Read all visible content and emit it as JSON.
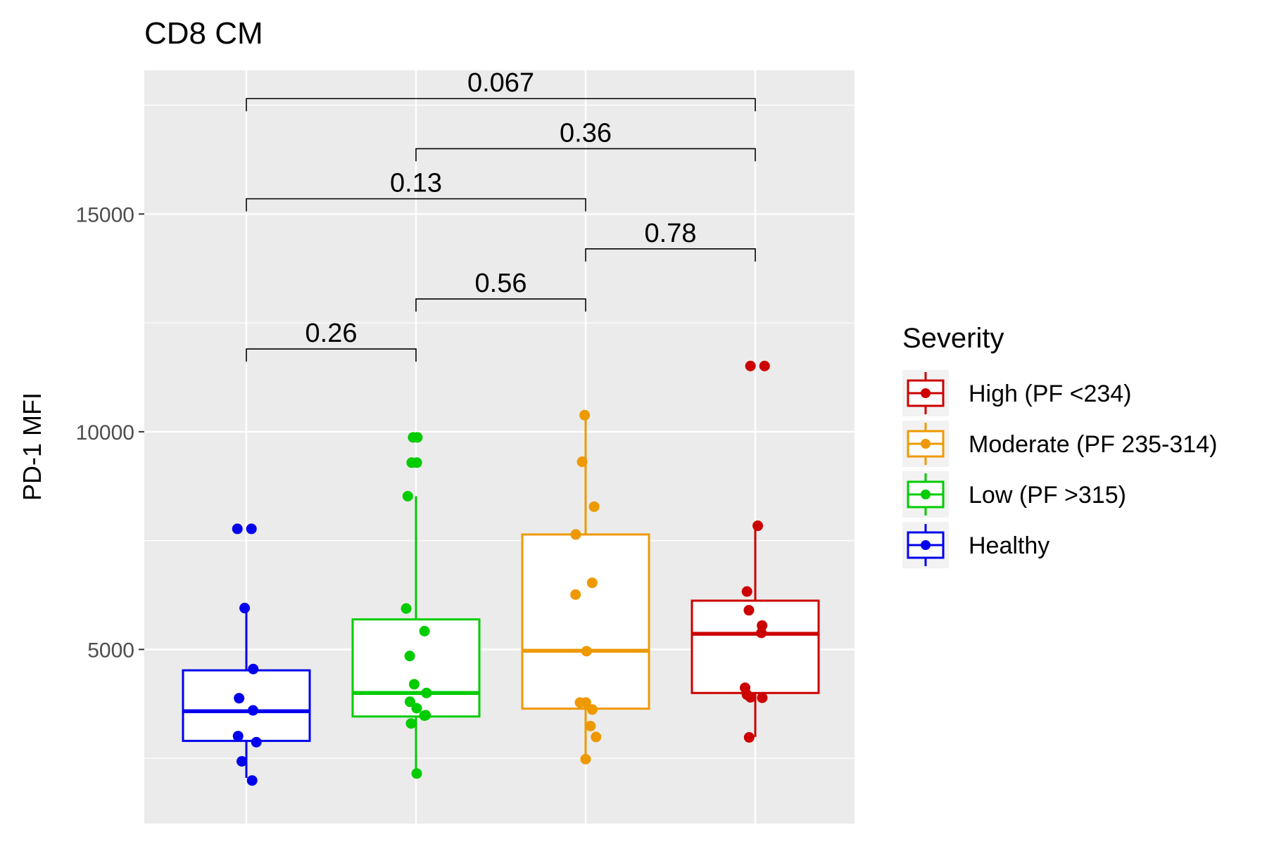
{
  "chart_data": {
    "type": "box",
    "title": "CD8 CM",
    "xlabel": "",
    "ylabel": "PD-1 MFI",
    "ylim": [
      1000,
      18300
    ],
    "yticks": [
      5000,
      10000,
      15000
    ],
    "grid": true,
    "legend": {
      "title": "Severity",
      "position": "right",
      "entries": [
        {
          "name": "High (PF <234)",
          "color": "#CC0000"
        },
        {
          "name": "Moderate (PF 235-314)",
          "color": "#EE9900"
        },
        {
          "name": "Low (PF >315)",
          "color": "#00CC00"
        },
        {
          "name": "Healthy",
          "color": "#0000EE"
        }
      ]
    },
    "groups": [
      {
        "name": "Healthy",
        "color": "#0000EE",
        "whisker_low": 2050,
        "q1": 2900,
        "median": 3580,
        "q3": 4520,
        "whisker_high": 5950,
        "points": [
          7770,
          7770,
          5950,
          4550,
          3880,
          3600,
          3010,
          2870,
          2430,
          1990
        ]
      },
      {
        "name": "Low (PF >315)",
        "color": "#00CC00",
        "whisker_low": 2170,
        "q1": 3460,
        "median": 4000,
        "q3": 5690,
        "whisker_high": 8520,
        "points": [
          9870,
          9870,
          9290,
          9290,
          8520,
          5940,
          5420,
          4850,
          4200,
          4000,
          3800,
          3650,
          3490,
          3480,
          3300,
          2150
        ]
      },
      {
        "name": "Moderate (PF 235-314)",
        "color": "#EE9900",
        "whisker_low": 2520,
        "q1": 3640,
        "median": 4970,
        "q3": 7640,
        "whisker_high": 10350,
        "points": [
          10380,
          9310,
          8280,
          7640,
          6530,
          6260,
          4960,
          3780,
          3780,
          3620,
          3240,
          2990,
          2480
        ]
      },
      {
        "name": "High (PF <234)",
        "color": "#CC0000",
        "whisker_low": 2990,
        "q1": 4000,
        "median": 5360,
        "q3": 6120,
        "whisker_high": 7840,
        "points": [
          11510,
          11510,
          7840,
          6330,
          5900,
          5550,
          5380,
          4120,
          3960,
          3900,
          3890,
          2980
        ]
      }
    ],
    "comparisons": [
      {
        "from": 0,
        "to": 1,
        "y": 11900,
        "label": "0.26"
      },
      {
        "from": 1,
        "to": 2,
        "y": 13050,
        "label": "0.56"
      },
      {
        "from": 2,
        "to": 3,
        "y": 14200,
        "label": "0.78"
      },
      {
        "from": 0,
        "to": 2,
        "y": 15350,
        "label": "0.13"
      },
      {
        "from": 1,
        "to": 3,
        "y": 16500,
        "label": "0.36"
      },
      {
        "from": 0,
        "to": 3,
        "y": 17650,
        "label": "0.067"
      }
    ]
  }
}
